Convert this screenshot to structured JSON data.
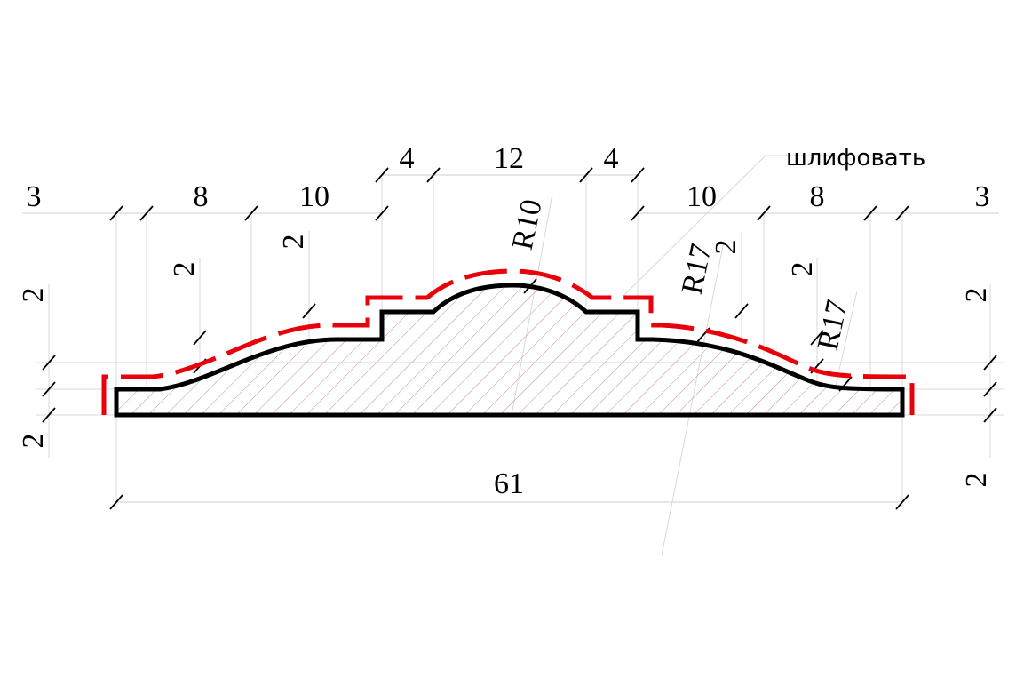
{
  "drawing": {
    "colors": {
      "outline": "#000000",
      "allowance": "#e8000b",
      "hatch": "#c98a8a",
      "ext": "#d9d9d9"
    },
    "note": "шлифовать",
    "top_dims": [
      "3",
      "8",
      "10",
      "4",
      "12",
      "4",
      "10",
      "8",
      "3"
    ],
    "radius_labels": [
      "R10",
      "R17",
      "R17"
    ],
    "height_labels": [
      "2",
      "2",
      "2",
      "2",
      "2",
      "2",
      "2",
      "2"
    ],
    "overall_width": "61"
  }
}
